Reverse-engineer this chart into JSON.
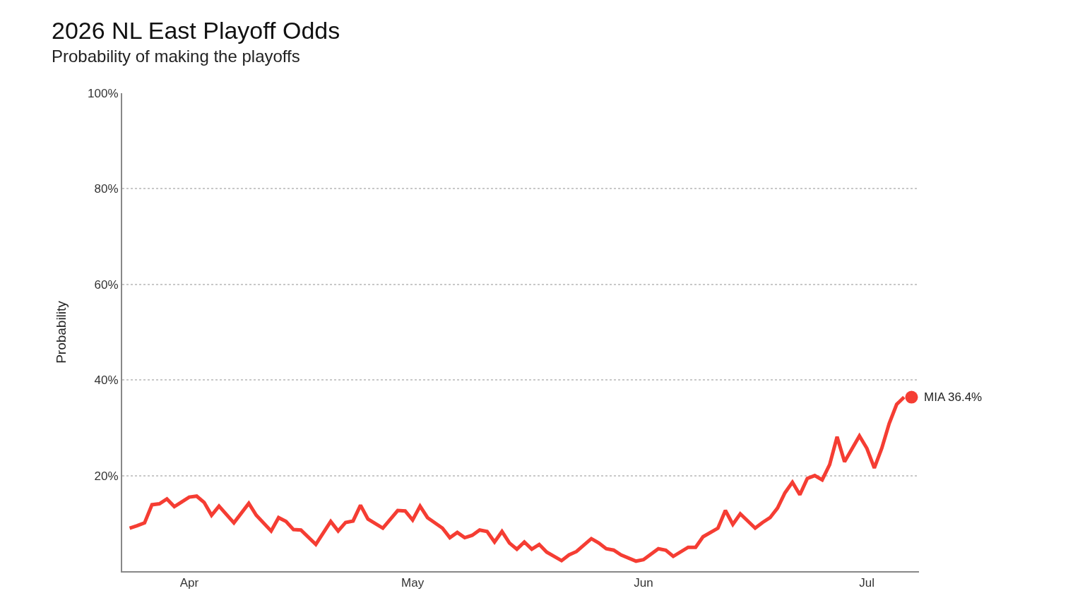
{
  "chart_data": {
    "type": "line",
    "title": "2026 NL East Playoff Odds",
    "subtitle": "Probability of making the playoffs",
    "ylabel": "Probability",
    "annotations": [
      {
        "text": "MIA 36.4%",
        "x": "2026-07-07",
        "y": 36.4
      }
    ],
    "series": [
      {
        "color": "#f53d33",
        "x": [
          "2026-03-24",
          "2026-03-25",
          "2026-03-26",
          "2026-03-27",
          "2026-03-28",
          "2026-03-29",
          "2026-03-30",
          "2026-04-01",
          "2026-04-02",
          "2026-04-03",
          "2026-04-04",
          "2026-04-05",
          "2026-04-07",
          "2026-04-09",
          "2026-04-10",
          "2026-04-12",
          "2026-04-13",
          "2026-04-14",
          "2026-04-15",
          "2026-04-16",
          "2026-04-18",
          "2026-04-20",
          "2026-04-21",
          "2026-04-22",
          "2026-04-23",
          "2026-04-24",
          "2026-04-25",
          "2026-04-27",
          "2026-04-29",
          "2026-04-30",
          "2026-05-01",
          "2026-05-02",
          "2026-05-03",
          "2026-05-05",
          "2026-05-06",
          "2026-05-07",
          "2026-05-08",
          "2026-05-09",
          "2026-05-10",
          "2026-05-11",
          "2026-05-12",
          "2026-05-13",
          "2026-05-14",
          "2026-05-15",
          "2026-05-16",
          "2026-05-17",
          "2026-05-18",
          "2026-05-19",
          "2026-05-21",
          "2026-05-22",
          "2026-05-23",
          "2026-05-25",
          "2026-05-26",
          "2026-05-27",
          "2026-05-28",
          "2026-05-29",
          "2026-05-31",
          "2026-06-01",
          "2026-06-03",
          "2026-06-04",
          "2026-06-05",
          "2026-06-07",
          "2026-06-08",
          "2026-06-09",
          "2026-06-11",
          "2026-06-12",
          "2026-06-13",
          "2026-06-14",
          "2026-06-16",
          "2026-06-17",
          "2026-06-18",
          "2026-06-19",
          "2026-06-20",
          "2026-06-21",
          "2026-06-22",
          "2026-06-23",
          "2026-06-24",
          "2026-06-25",
          "2026-06-26",
          "2026-06-27",
          "2026-06-28",
          "2026-06-30",
          "2026-07-01",
          "2026-07-02",
          "2026-07-03",
          "2026-07-04",
          "2026-07-05",
          "2026-07-06"
        ],
        "values": [
          9.0,
          9.5,
          10.1,
          13.9,
          14.1,
          15.1,
          13.5,
          15.5,
          15.7,
          14.4,
          11.7,
          13.6,
          10.1,
          14.2,
          11.7,
          8.4,
          11.2,
          10.4,
          8.7,
          8.6,
          5.6,
          10.4,
          8.4,
          10.2,
          10.5,
          13.8,
          10.9,
          9.0,
          12.7,
          12.6,
          10.7,
          13.6,
          11.2,
          9.0,
          7.0,
          8.1,
          7.0,
          7.5,
          8.6,
          8.3,
          6.1,
          8.3,
          5.9,
          4.6,
          6.1,
          4.6,
          5.6,
          4.0,
          2.2,
          3.4,
          4.1,
          6.8,
          5.9,
          4.7,
          4.4,
          3.4,
          2.1,
          2.4,
          4.7,
          4.4,
          3.1,
          5.0,
          5.0,
          7.2,
          9.0,
          12.7,
          9.8,
          12.0,
          9.0,
          10.2,
          11.2,
          13.2,
          16.4,
          18.6,
          16.0,
          19.4,
          20.0,
          19.1,
          22.3,
          28.1,
          22.9,
          28.3,
          25.7,
          21.6,
          25.7,
          30.9,
          34.9,
          36.4
        ]
      },
      {
        "type": "scatter",
        "color": "#f53d33",
        "marker": "circle",
        "x": [
          "2026-07-07"
        ],
        "values": [
          36.4
        ]
      }
    ],
    "xlim": [
      "2026-03-23",
      "2026-07-08"
    ],
    "xticks": [
      {
        "value": "2026-04-01",
        "label": "Apr"
      },
      {
        "value": "2026-05-01",
        "label": "May"
      },
      {
        "value": "2026-06-01",
        "label": "Jun"
      },
      {
        "value": "2026-07-01",
        "label": "Jul"
      }
    ],
    "ylim": [
      0,
      100
    ],
    "yticks": [
      {
        "value": 0,
        "label": null
      },
      {
        "value": 20,
        "label": "20%"
      },
      {
        "value": 40,
        "label": "40%"
      },
      {
        "value": 60,
        "label": "60%"
      },
      {
        "value": 80,
        "label": "80%"
      },
      {
        "value": 100,
        "label": "100%"
      }
    ],
    "grid": "y"
  }
}
